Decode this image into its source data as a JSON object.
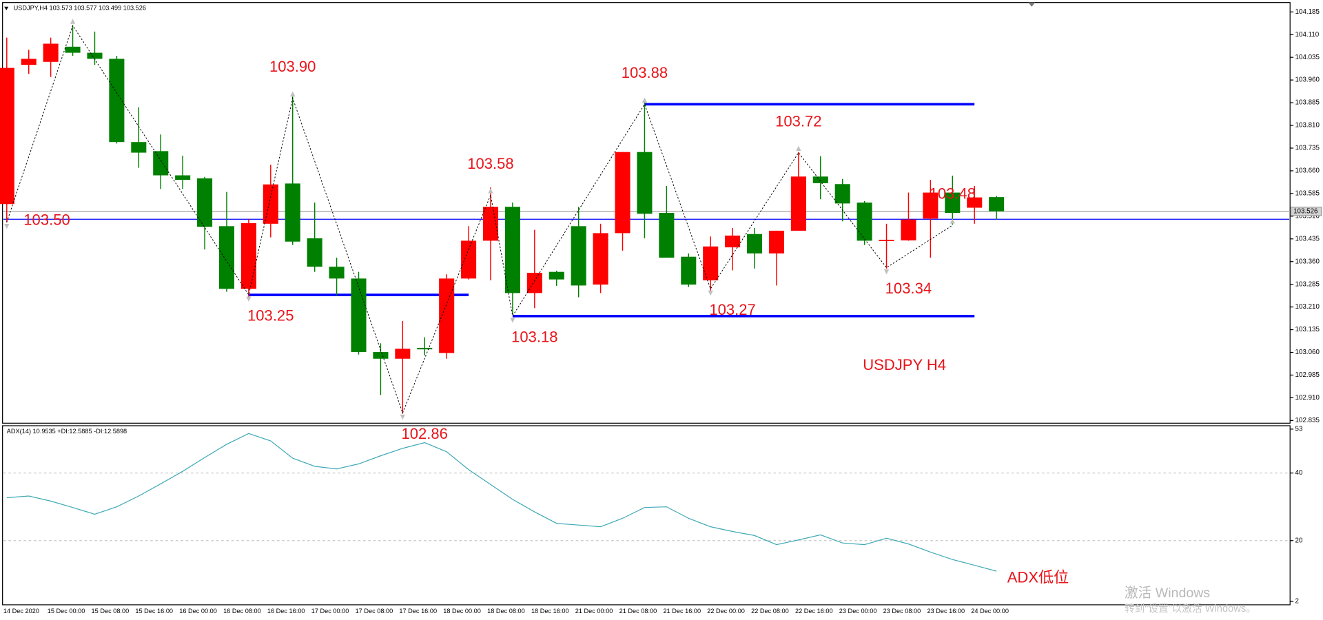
{
  "header": {
    "symbol_info": "USDJPY,H4  103.573 103.577 103.499 103.526"
  },
  "chart_data": [
    {
      "type": "candlestick",
      "categories": [
        "14 Dec 2020",
        null,
        "15 Dec 00:00",
        null,
        "15 Dec 08:00",
        null,
        "15 Dec 16:00",
        null,
        "16 Dec 00:00",
        null,
        "16 Dec 08:00",
        null,
        "16 Dec 16:00",
        null,
        "17 Dec 00:00",
        null,
        "17 Dec 08:00",
        null,
        "17 Dec 16:00",
        null,
        "18 Dec 00:00",
        null,
        "18 Dec 08:00",
        null,
        "18 Dec 16:00",
        null,
        "21 Dec 00:00",
        null,
        "21 Dec 08:00",
        null,
        "21 Dec 16:00",
        null,
        "22 Dec 00:00",
        null,
        "22 Dec 08:00",
        null,
        "22 Dec 16:00",
        null,
        "23 Dec 00:00",
        null,
        "23 Dec 08:00",
        null,
        "23 Dec 16:00",
        null,
        "24 Dec 00:00",
        null
      ],
      "open": [
        103.55,
        104.01,
        104.02,
        104.07,
        104.05,
        104.03,
        103.755,
        103.725,
        103.645,
        103.635,
        103.477,
        103.27,
        103.485,
        103.618,
        103.437,
        103.343,
        103.304,
        103.061,
        103.039,
        103.075,
        103.058,
        103.304,
        103.429,
        103.541,
        103.256,
        103.326,
        103.477,
        103.284,
        103.454,
        103.722,
        103.521,
        103.376,
        103.298,
        103.407,
        103.451,
        103.387,
        103.462,
        103.641,
        103.616,
        103.555,
        103.429,
        103.43,
        103.502,
        103.588,
        103.538,
        103.573
      ],
      "high": [
        104.1,
        104.06,
        104.1,
        104.14,
        104.12,
        104.04,
        103.87,
        103.78,
        103.71,
        103.64,
        103.59,
        103.5,
        103.68,
        103.905,
        103.555,
        103.373,
        103.326,
        103.09,
        103.164,
        103.11,
        103.318,
        103.477,
        103.605,
        103.555,
        103.465,
        103.33,
        103.541,
        103.485,
        103.722,
        103.889,
        103.61,
        103.387,
        103.443,
        103.471,
        103.471,
        103.462,
        103.722,
        103.708,
        103.633,
        103.56,
        103.485,
        103.588,
        103.63,
        103.644,
        103.61,
        103.577
      ],
      "low": [
        103.49,
        103.98,
        103.97,
        104.04,
        104.01,
        103.75,
        103.67,
        103.6,
        103.6,
        103.4,
        103.26,
        103.24,
        103.44,
        103.415,
        103.326,
        103.248,
        103.053,
        102.919,
        102.857,
        103.05,
        103.039,
        103.301,
        103.298,
        103.186,
        103.206,
        103.28,
        103.242,
        103.256,
        103.396,
        103.437,
        103.373,
        103.276,
        103.262,
        103.331,
        103.337,
        103.281,
        103.462,
        103.566,
        103.493,
        103.415,
        103.337,
        103.429,
        103.373,
        103.482,
        103.485,
        103.499
      ],
      "close": [
        104.0,
        104.03,
        104.08,
        104.05,
        104.03,
        103.755,
        103.72,
        103.645,
        103.63,
        103.475,
        103.27,
        103.487,
        103.615,
        103.426,
        103.343,
        103.304,
        103.061,
        103.039,
        103.072,
        103.07,
        103.304,
        103.429,
        103.541,
        103.256,
        103.323,
        103.301,
        103.281,
        103.454,
        103.722,
        103.518,
        103.373,
        103.284,
        103.41,
        103.446,
        103.387,
        103.462,
        103.641,
        103.619,
        103.552,
        103.429,
        103.432,
        103.499,
        103.588,
        103.521,
        103.572,
        103.526
      ],
      "up_color": "#ff0000",
      "down_color": "#008000",
      "ylim": [
        102.826,
        104.216
      ],
      "yticks": [
        104.185,
        {
          "value": 104.11,
          "label": "104.110"
        },
        104.035,
        {
          "value": 103.96,
          "label": "103.960"
        },
        103.885,
        {
          "value": 103.81,
          "label": "103.810"
        },
        103.735,
        {
          "value": 103.66,
          "label": "103.660"
        },
        103.585,
        {
          "value": 103.51,
          "label": "103.510"
        },
        103.435,
        {
          "value": 103.36,
          "label": "103.360"
        },
        103.285,
        {
          "value": 103.21,
          "label": "103.210"
        },
        103.135,
        {
          "value": 103.06,
          "label": "103.060"
        },
        102.985,
        {
          "value": 102.91,
          "label": "102.910"
        },
        102.835
      ],
      "current_price": 103.526,
      "hline": {
        "value": 103.5,
        "label": "103.50",
        "color": "#0000ff"
      },
      "zigzag": {
        "color": "#000000",
        "values": [
          103.49,
          null,
          null,
          104.14,
          null,
          null,
          null,
          null,
          null,
          null,
          null,
          103.25,
          null,
          103.9,
          null,
          null,
          null,
          null,
          102.86,
          null,
          null,
          null,
          103.58,
          103.18,
          null,
          null,
          null,
          null,
          null,
          103.88,
          null,
          null,
          103.27,
          null,
          null,
          null,
          103.72,
          null,
          null,
          null,
          103.34,
          null,
          null,
          103.48,
          null,
          null
        ],
        "value_labels": [
          null,
          null,
          null,
          null,
          null,
          null,
          null,
          null,
          null,
          null,
          null,
          "103.25",
          null,
          "103.90",
          null,
          null,
          null,
          null,
          "102.86",
          null,
          null,
          null,
          "103.58",
          "103.18",
          null,
          null,
          null,
          null,
          null,
          "103.88",
          null,
          null,
          "103.27",
          null,
          null,
          null,
          "103.72",
          null,
          null,
          null,
          "103.34",
          null,
          null,
          "103.48",
          null,
          null
        ]
      },
      "levels": [
        {
          "color": "#0000ff",
          "values": [
            null,
            null,
            null,
            null,
            null,
            null,
            null,
            null,
            null,
            null,
            null,
            103.25,
            103.25,
            103.25,
            103.25,
            103.25,
            103.25,
            103.25,
            103.25,
            103.25,
            103.25,
            103.25,
            null,
            null,
            null,
            null,
            null,
            null,
            null,
            null,
            null,
            null,
            null,
            null,
            null,
            null,
            null,
            null,
            null,
            null,
            null,
            null,
            null,
            null,
            null,
            null
          ]
        },
        {
          "color": "#0000ff",
          "values": [
            null,
            null,
            null,
            null,
            null,
            null,
            null,
            null,
            null,
            null,
            null,
            null,
            null,
            null,
            null,
            null,
            null,
            null,
            null,
            null,
            null,
            null,
            null,
            null,
            null,
            null,
            null,
            null,
            null,
            103.88,
            103.88,
            103.88,
            103.88,
            103.88,
            103.88,
            103.88,
            103.88,
            103.88,
            103.88,
            103.88,
            103.88,
            103.88,
            103.88,
            103.88,
            103.88,
            null
          ]
        },
        {
          "color": "#0000ff",
          "values": [
            null,
            null,
            null,
            null,
            null,
            null,
            null,
            null,
            null,
            null,
            null,
            null,
            null,
            null,
            null,
            null,
            null,
            null,
            null,
            null,
            null,
            null,
            null,
            103.18,
            103.18,
            103.18,
            103.18,
            103.18,
            103.18,
            103.18,
            103.18,
            103.18,
            103.18,
            103.18,
            103.18,
            103.18,
            103.18,
            103.18,
            103.18,
            103.18,
            103.18,
            103.18,
            103.18,
            103.18,
            103.18,
            null
          ]
        }
      ],
      "annotation": "USDJPY H4"
    },
    {
      "type": "line",
      "title": "ADX(14) 10.9535 +DI:12.5885 -DI:12.5898",
      "color": "#3fa9b5",
      "values": [
        32.7,
        33.2,
        31.7,
        29.8,
        27.8,
        30.0,
        33.2,
        36.8,
        40.5,
        44.6,
        48.5,
        51.7,
        49.5,
        44.4,
        42.0,
        41.2,
        42.7,
        45.1,
        47.3,
        49.0,
        46.3,
        41.0,
        36.6,
        32.2,
        28.5,
        25.1,
        24.6,
        24.1,
        26.6,
        29.8,
        30.0,
        26.6,
        24.1,
        22.7,
        21.5,
        18.8,
        20.2,
        21.7,
        19.3,
        18.8,
        20.7,
        19.0,
        16.6,
        14.4,
        12.7,
        10.95
      ],
      "ylim": [
        2,
        53
      ],
      "yticks": [
        53,
        40,
        20,
        2
      ],
      "grid": true,
      "annotation": "ADX低位"
    }
  ],
  "watermark": {
    "title": "激活 Windows",
    "subtitle": "转到“设置”以激活 Windows。"
  }
}
